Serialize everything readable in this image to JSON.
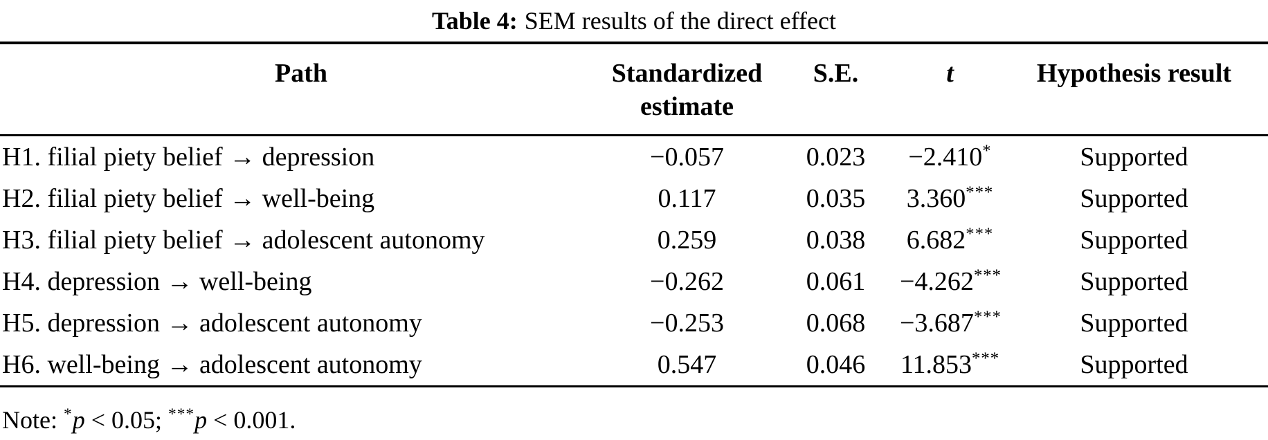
{
  "title": {
    "label": "Table 4:",
    "text": "SEM results of the direct effect"
  },
  "columns": {
    "path": "Path",
    "estimate_line1": "Standardized",
    "estimate_line2": "estimate",
    "se": "S.E.",
    "t": "t",
    "hypothesis": "Hypothesis result"
  },
  "rows": [
    {
      "path": "H1. filial piety belief → depression",
      "estimate": "−0.057",
      "se": "0.023",
      "t": "−2.410",
      "t_stars": "*",
      "result": "Supported"
    },
    {
      "path": "H2. filial piety belief → well-being",
      "estimate": "0.117",
      "se": "0.035",
      "t": "3.360",
      "t_stars": "***",
      "result": "Supported"
    },
    {
      "path": "H3. filial piety belief → adolescent autonomy",
      "estimate": "0.259",
      "se": "0.038",
      "t": "6.682",
      "t_stars": "***",
      "result": "Supported"
    },
    {
      "path": "H4. depression → well-being",
      "estimate": "−0.262",
      "se": "0.061",
      "t": "−4.262",
      "t_stars": "***",
      "result": "Supported"
    },
    {
      "path": "H5. depression → adolescent autonomy",
      "estimate": "−0.253",
      "se": "0.068",
      "t": "−3.687",
      "t_stars": "***",
      "result": "Supported"
    },
    {
      "path": "H6. well-being → adolescent autonomy",
      "estimate": "0.547",
      "se": "0.046",
      "t": "11.853",
      "t_stars": "***",
      "result": "Supported"
    }
  ],
  "note": {
    "prefix": "Note: ",
    "star1": "*",
    "p1": "p",
    "cond1": " < 0.05; ",
    "star2": "***",
    "p2": "p",
    "cond2": " < 0.001."
  }
}
